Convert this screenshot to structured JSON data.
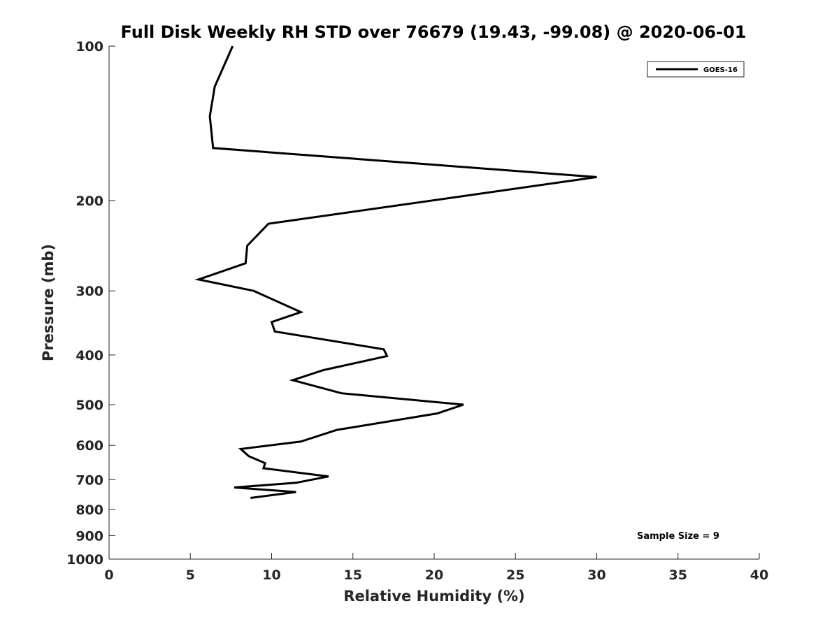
{
  "chart_data": {
    "type": "line",
    "title": "Full Disk Weekly RH STD over 76679 (19.43, -99.08) @ 2020-06-01",
    "xlabel": "Relative Humidity (%)",
    "ylabel": "Pressure (mb)",
    "xlim": [
      0,
      40
    ],
    "ylim": [
      100,
      1000
    ],
    "yscale": "log",
    "y_inverted": true,
    "grid": false,
    "x_ticks": [
      0,
      5,
      10,
      15,
      20,
      25,
      30,
      35,
      40
    ],
    "y_ticks": [
      100,
      200,
      300,
      400,
      500,
      600,
      700,
      800,
      900,
      1000
    ],
    "legend_position": "top-right",
    "annotation": "Sample Size = 9",
    "series": [
      {
        "name": "GOES-16",
        "color": "#000000",
        "x": [
          7.6,
          6.5,
          6.2,
          6.4,
          30.0,
          9.8,
          8.5,
          8.4,
          5.5,
          8.9,
          11.8,
          10.0,
          10.2,
          16.9,
          17.1,
          13.2,
          11.3,
          14.3,
          21.8,
          20.2,
          14.0,
          11.8,
          8.1,
          8.6,
          9.6,
          9.5,
          13.5,
          11.5,
          7.7,
          11.5,
          8.7
        ],
        "y": [
          100,
          120,
          137,
          158,
          180,
          222,
          245,
          265,
          285,
          300,
          330,
          345,
          360,
          390,
          402,
          428,
          448,
          475,
          500,
          520,
          560,
          590,
          610,
          630,
          650,
          665,
          690,
          710,
          725,
          740,
          760
        ]
      }
    ]
  }
}
